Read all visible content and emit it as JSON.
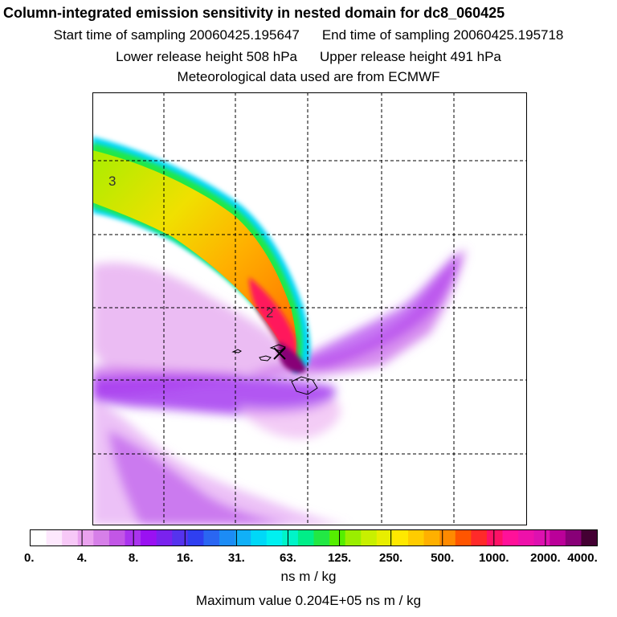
{
  "header": {
    "title": "Column-integrated emission sensitivity in nested domain for dc8_060425",
    "start_label": "Start time of sampling 20060425.195647",
    "end_label": "End time of sampling 20060425.195718",
    "lower_label": "Lower release height  508 hPa",
    "upper_label": "Upper release height  491 hPa",
    "met_label": "Meteorological data used are from ECMWF"
  },
  "map": {
    "plume_labels": [
      "3",
      "2"
    ],
    "grid": true,
    "release_marker": "cross-icon"
  },
  "colorbar": {
    "tick_labels": [
      "0.",
      "4.",
      "8.",
      "16.",
      "31.",
      "63.",
      "125.",
      "250.",
      "500.",
      "1000.",
      "2000.",
      "4000."
    ],
    "colors": [
      "#ffffff",
      "#fde8fd",
      "#f7c8f7",
      "#eaa2ef",
      "#d67fe8",
      "#c256e6",
      "#aa33ee",
      "#9a11f2",
      "#7a22ee",
      "#5533ee",
      "#2f3ff0",
      "#2a66f2",
      "#1c8cf5",
      "#11b0f7",
      "#00d8f7",
      "#00f0f0",
      "#00f4c8",
      "#00ee88",
      "#22e844",
      "#55ee00",
      "#9aee00",
      "#c8f000",
      "#e8ee00",
      "#ffe800",
      "#ffcc00",
      "#ffb000",
      "#ff8a00",
      "#ff5500",
      "#ff2a2a",
      "#ff1166",
      "#ff1199",
      "#ee11aa",
      "#dd11b0",
      "#bb0099",
      "#880077",
      "#440033"
    ],
    "units": "ns m / kg"
  },
  "footer": {
    "max_value": "Maximum value  0.204E+05 ns m / kg"
  }
}
